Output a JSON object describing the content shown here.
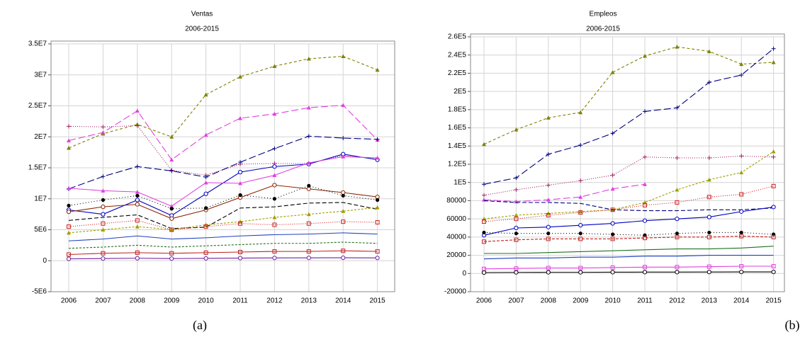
{
  "chart_data": [
    {
      "type": "line",
      "title": "Ventas",
      "subtitle": "2006-2015",
      "caption": "(a)",
      "grid": true,
      "categories": [
        "2006",
        "2007",
        "2008",
        "2009",
        "2010",
        "2011",
        "2012",
        "2013",
        "2014",
        "2015"
      ],
      "ylim": [
        -5000000,
        35000000
      ],
      "yticks": [
        {
          "value": -5000000,
          "label": "-5E6"
        },
        0,
        {
          "value": 5000000,
          "label": "5E6"
        },
        {
          "value": 10000000,
          "label": "1E7"
        },
        {
          "value": 15000000,
          "label": "1.5E7"
        },
        {
          "value": 20000000,
          "label": "2E7"
        },
        {
          "value": 25000000,
          "label": "2.5E7"
        },
        {
          "value": 30000000,
          "label": "3E7"
        },
        {
          "value": 35000000,
          "label": "3.5E7"
        }
      ],
      "series": [
        {
          "color": "#808000",
          "dash": "4,3",
          "marker": "triangle",
          "values": [
            18200000,
            20500000,
            22000000,
            20000000,
            26800000,
            29700000,
            31400000,
            32600000,
            33000000,
            30800000
          ]
        },
        {
          "color": "#e040e0",
          "dash": "10,4",
          "marker": "triangle",
          "values": [
            19400000,
            20700000,
            24200000,
            16300000,
            20300000,
            23000000,
            23700000,
            24700000,
            25100000,
            19500000
          ]
        },
        {
          "color": "#a02060",
          "dash": "1,2",
          "marker": "plus",
          "values": [
            21700000,
            21600000,
            21800000,
            14600000,
            13800000,
            15600000,
            15700000,
            15700000,
            17000000,
            16400000
          ]
        },
        {
          "color": "#000080",
          "dash": "10,4",
          "marker": "plus",
          "values": [
            11600000,
            13600000,
            15200000,
            14500000,
            13500000,
            15900000,
            18100000,
            20100000,
            19800000,
            19600000
          ]
        },
        {
          "color": "#0000c0",
          "dash": "",
          "marker": "circle",
          "values": [
            8200000,
            7500000,
            9800000,
            7300000,
            10800000,
            14300000,
            15200000,
            15600000,
            17200000,
            16300000
          ]
        },
        {
          "color": "#e040e0",
          "dash": "",
          "marker": "triangle",
          "values": [
            11700000,
            11300000,
            11100000,
            8800000,
            12600000,
            12500000,
            13800000,
            15800000,
            16800000,
            16600000
          ]
        },
        {
          "color": "#8b2500",
          "dash": "",
          "marker": "circle",
          "values": [
            7900000,
            8700000,
            9100000,
            6800000,
            8200000,
            10200000,
            12200000,
            11600000,
            11000000,
            10300000
          ]
        },
        {
          "color": "#000000",
          "dash": "1,3",
          "marker": "dot",
          "values": [
            8900000,
            9800000,
            10500000,
            8400000,
            8500000,
            10600000,
            10000000,
            12100000,
            10500000,
            9800000
          ]
        },
        {
          "color": "#000000",
          "dash": "6,3",
          "marker": "",
          "values": [
            6500000,
            7000000,
            7400000,
            5200000,
            5400000,
            8500000,
            8700000,
            9300000,
            9400000,
            8300000
          ]
        },
        {
          "color": "#a0a000",
          "dash": "3,2",
          "marker": "triangle",
          "values": [
            4500000,
            5000000,
            5500000,
            5000000,
            5800000,
            6300000,
            7000000,
            7500000,
            8000000,
            8600000
          ]
        },
        {
          "color": "#d02020",
          "dash": "1,2",
          "marker": "square",
          "values": [
            5500000,
            6000000,
            6500000,
            5000000,
            5500000,
            6000000,
            5800000,
            6000000,
            6300000,
            6200000
          ]
        },
        {
          "color": "#2040c0",
          "dash": "",
          "marker": "",
          "values": [
            3200000,
            3500000,
            4000000,
            3500000,
            3700000,
            4000000,
            4200000,
            4300000,
            4500000,
            4300000
          ]
        },
        {
          "color": "#207020",
          "dash": "3,2",
          "marker": "",
          "values": [
            2000000,
            2200000,
            2500000,
            2200000,
            2400000,
            2600000,
            2800000,
            2800000,
            3000000,
            2800000
          ]
        },
        {
          "color": "#c02020",
          "dash": "",
          "marker": "square",
          "values": [
            1000000,
            1200000,
            1300000,
            1200000,
            1300000,
            1400000,
            1500000,
            1500000,
            1600000,
            1500000
          ]
        },
        {
          "color": "#7020a0",
          "dash": "",
          "marker": "circle",
          "values": [
            300000,
            350000,
            400000,
            350000,
            380000,
            420000,
            450000,
            460000,
            480000,
            450000
          ]
        }
      ]
    },
    {
      "type": "line",
      "title": "Empleos",
      "subtitle": "2006-2015",
      "caption": "(b)",
      "grid": true,
      "categories": [
        "2006",
        "2007",
        "2008",
        "2009",
        "2010",
        "2011",
        "2012",
        "2013",
        "2014",
        "2015"
      ],
      "ylim": [
        -20000,
        260000
      ],
      "yticks": [
        -20000,
        0,
        20000,
        40000,
        60000,
        80000,
        {
          "value": 100000,
          "label": "1E5"
        },
        {
          "value": 120000,
          "label": "1.2E5"
        },
        {
          "value": 140000,
          "label": "1.4E5"
        },
        {
          "value": 160000,
          "label": "1.6E5"
        },
        {
          "value": 180000,
          "label": "1.8E5"
        },
        {
          "value": 200000,
          "label": "2E5"
        },
        {
          "value": 220000,
          "label": "2.2E5"
        },
        {
          "value": 240000,
          "label": "2.4E5"
        },
        {
          "value": 260000,
          "label": "2.6E5"
        }
      ],
      "series": [
        {
          "color": "#808000",
          "dash": "4,3",
          "marker": "triangle",
          "values": [
            142000,
            158000,
            171000,
            177000,
            221000,
            239000,
            249000,
            244000,
            230000,
            232000
          ]
        },
        {
          "color": "#000080",
          "dash": "10,4",
          "marker": "plus",
          "values": [
            98000,
            105000,
            131000,
            141000,
            154000,
            178000,
            182000,
            210000,
            218000,
            247000
          ]
        },
        {
          "color": "#a02060",
          "dash": "1,2",
          "marker": "plus",
          "values": [
            86000,
            92000,
            97000,
            102000,
            108000,
            128000,
            127000,
            127000,
            129000,
            128000
          ]
        },
        {
          "color": "#e040e0",
          "dash": "10,4",
          "marker": "triangle",
          "values": [
            81000,
            79000,
            81000,
            84000,
            93000,
            98000,
            null,
            null,
            null,
            null
          ]
        },
        {
          "color": "#a0a000",
          "dash": "3,2",
          "marker": "triangle",
          "values": [
            60000,
            64000,
            66000,
            68000,
            70000,
            78000,
            92000,
            103000,
            111000,
            134000
          ]
        },
        {
          "color": "#d02020",
          "dash": "1,2",
          "marker": "square",
          "values": [
            57000,
            60000,
            64000,
            67000,
            70000,
            75000,
            78000,
            84000,
            87000,
            96000
          ]
        },
        {
          "color": "#000080",
          "dash": "6,3",
          "marker": "",
          "values": [
            80000,
            78000,
            78000,
            77000,
            70000,
            69000,
            69000,
            70000,
            70000,
            72000
          ]
        },
        {
          "color": "#0000c0",
          "dash": "",
          "marker": "circle",
          "values": [
            42000,
            50000,
            51000,
            53000,
            55000,
            58000,
            60000,
            62000,
            68000,
            73000
          ]
        },
        {
          "color": "#000000",
          "dash": "1,3",
          "marker": "dot",
          "values": [
            45000,
            44000,
            44000,
            44000,
            43000,
            42000,
            44000,
            45000,
            45000,
            43000
          ]
        },
        {
          "color": "#c02020",
          "dash": "4,2",
          "marker": "square",
          "values": [
            35000,
            37000,
            38000,
            38000,
            38000,
            39000,
            40000,
            40000,
            41000,
            40000
          ]
        },
        {
          "color": "#207020",
          "dash": "",
          "marker": "",
          "values": [
            22000,
            22000,
            23000,
            24000,
            25000,
            26000,
            27000,
            27000,
            28000,
            30000
          ]
        },
        {
          "color": "#2040c0",
          "dash": "",
          "marker": "",
          "values": [
            16000,
            17000,
            17000,
            18000,
            18000,
            19000,
            19000,
            20000,
            20000,
            20000
          ]
        },
        {
          "color": "#e040e0",
          "dash": "",
          "marker": "square",
          "values": [
            5000,
            5500,
            6000,
            6000,
            6500,
            7000,
            7000,
            7500,
            8000,
            8000
          ]
        },
        {
          "color": "#000000",
          "dash": "",
          "marker": "circle",
          "values": [
            1000,
            1200,
            1300,
            1300,
            1400,
            1500,
            1500,
            1600,
            1700,
            1700
          ]
        }
      ]
    }
  ]
}
